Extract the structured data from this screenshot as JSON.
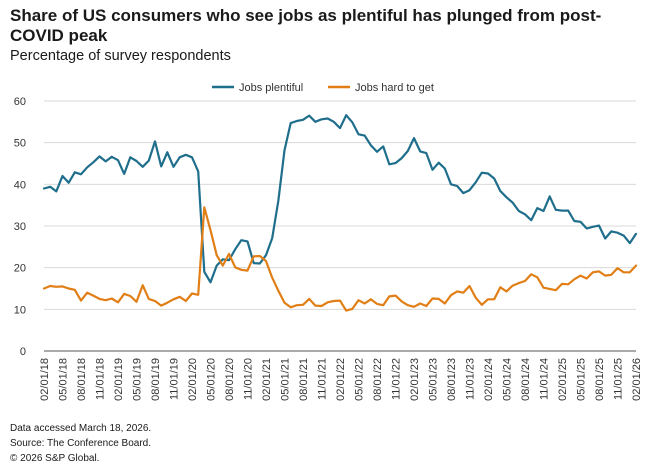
{
  "chart_data": {
    "type": "line",
    "title": "Share of US consumers who see jobs as plentiful has plunged from post-COVID peak",
    "subtitle": "Percentage  of survey respondents",
    "ylim": [
      0,
      60
    ],
    "y_ticks": [
      "0",
      "10",
      "20",
      "30",
      "40",
      "50",
      "60"
    ],
    "x_range_months": [
      0,
      96
    ],
    "x_ticks": [
      "02/01/18",
      "05/01/18",
      "08/01/18",
      "11/01/18",
      "02/01/19",
      "05/01/19",
      "08/01/19",
      "11/01/19",
      "02/01/20",
      "05/01/20",
      "08/01/20",
      "11/01/20",
      "02/01/21",
      "05/01/21",
      "08/01/21",
      "11/01/21",
      "02/01/22",
      "05/01/22",
      "08/01/22",
      "11/01/22",
      "02/01/23",
      "05/01/23",
      "08/01/23",
      "11/01/23",
      "02/01/24",
      "05/01/24",
      "08/01/24",
      "11/01/24",
      "02/01/25",
      "05/01/25",
      "08/01/25",
      "11/01/25",
      "02/01/26"
    ],
    "legend_position": "top-center",
    "series": [
      {
        "name": "Jobs plentiful",
        "color": "#1f6e8c",
        "values": [
          39.0,
          39.4,
          38.3,
          42.0,
          40.4,
          42.9,
          42.4,
          44.1,
          45.3,
          46.7,
          45.5,
          46.6,
          45.8,
          42.5,
          46.5,
          45.6,
          44.2,
          45.7,
          50.3,
          44.3,
          47.7,
          44.2,
          46.5,
          47.1,
          46.5,
          43.1,
          19.0,
          16.5,
          20.5,
          22.0,
          21.8,
          24.4,
          26.6,
          26.3,
          21.1,
          21.0,
          23.0,
          27.1,
          36.0,
          48.2,
          54.7,
          55.2,
          55.5,
          56.5,
          55.0,
          55.6,
          55.8,
          55.0,
          53.5,
          56.6,
          54.9,
          52.0,
          51.7,
          49.4,
          47.8,
          49.1,
          44.8,
          45.1,
          46.3,
          48.0,
          51.1,
          47.9,
          47.5,
          43.5,
          45.2,
          43.8,
          40.0,
          39.6,
          37.9,
          38.6,
          40.5,
          42.8,
          42.6,
          41.4,
          38.4,
          36.9,
          35.6,
          33.6,
          32.8,
          31.4,
          34.3,
          33.6,
          37.1,
          33.9,
          33.7,
          33.7,
          31.2,
          31.0,
          29.4,
          29.8,
          30.1,
          27.0,
          28.7,
          28.4,
          27.7,
          25.9,
          28.1
        ]
      },
      {
        "name": "Jobs hard to get",
        "color": "#e17f16",
        "values": [
          15.0,
          15.6,
          15.4,
          15.5,
          15.0,
          14.7,
          12.1,
          14.0,
          13.3,
          12.5,
          12.2,
          12.6,
          11.7,
          13.7,
          13.2,
          11.8,
          15.8,
          12.5,
          12.0,
          10.9,
          11.6,
          12.4,
          13.0,
          12.0,
          13.8,
          13.5,
          34.5,
          29.0,
          23.0,
          20.5,
          23.3,
          20.1,
          19.5,
          19.3,
          22.7,
          22.8,
          21.6,
          17.6,
          14.5,
          11.6,
          10.5,
          11.0,
          11.1,
          12.5,
          10.9,
          10.8,
          11.7,
          12.0,
          12.1,
          9.7,
          10.1,
          12.2,
          11.4,
          12.4,
          11.3,
          11.0,
          13.1,
          13.3,
          11.9,
          11.0,
          10.6,
          11.4,
          10.8,
          12.6,
          12.5,
          11.4,
          13.4,
          14.3,
          14.0,
          15.6,
          12.8,
          11.1,
          12.4,
          12.4,
          15.3,
          14.3,
          15.7,
          16.3,
          16.8,
          18.4,
          17.7,
          15.2,
          14.9,
          14.6,
          16.1,
          16.0,
          17.2,
          18.1,
          17.4,
          18.9,
          19.1,
          18.1,
          18.3,
          19.9,
          18.9,
          18.9,
          20.5
        ]
      }
    ]
  },
  "footnotes": {
    "accessed": "Data accessed March 18, 2026.",
    "source": "Source: The Conference Board.",
    "copyright": "© 2026 S&P Global."
  }
}
